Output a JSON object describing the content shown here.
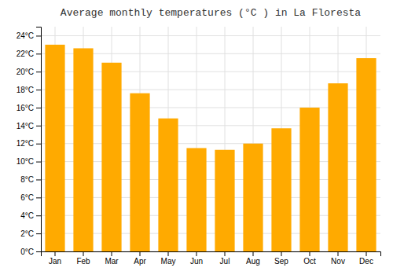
{
  "chart_data": {
    "type": "bar",
    "title": "Average monthly temperatures (°C ) in La Floresta",
    "categories": [
      "Jan",
      "Feb",
      "Mar",
      "Apr",
      "May",
      "Jun",
      "Jul",
      "Aug",
      "Sep",
      "Oct",
      "Nov",
      "Dec"
    ],
    "values": [
      23.0,
      22.6,
      21.0,
      17.6,
      14.8,
      11.5,
      11.3,
      12.0,
      13.7,
      16.0,
      18.7,
      21.5
    ],
    "color": "#FFAA00",
    "ylim": [
      0,
      25
    ],
    "yticks": [
      {
        "value": 0,
        "label": "0°C"
      },
      {
        "value": 2,
        "label": "2°C"
      },
      {
        "value": 4,
        "label": "4°C"
      },
      {
        "value": 6,
        "label": "6°C"
      },
      {
        "value": 8,
        "label": "8°C"
      },
      {
        "value": 10,
        "label": "10°C"
      },
      {
        "value": 12,
        "label": "12°C"
      },
      {
        "value": 14,
        "label": "14°C"
      },
      {
        "value": 16,
        "label": "16°C"
      },
      {
        "value": 18,
        "label": "18°C"
      },
      {
        "value": 20,
        "label": "20°C"
      },
      {
        "value": 22,
        "label": "22°C"
      },
      {
        "value": 24,
        "label": "24°C"
      }
    ],
    "grid": true
  }
}
